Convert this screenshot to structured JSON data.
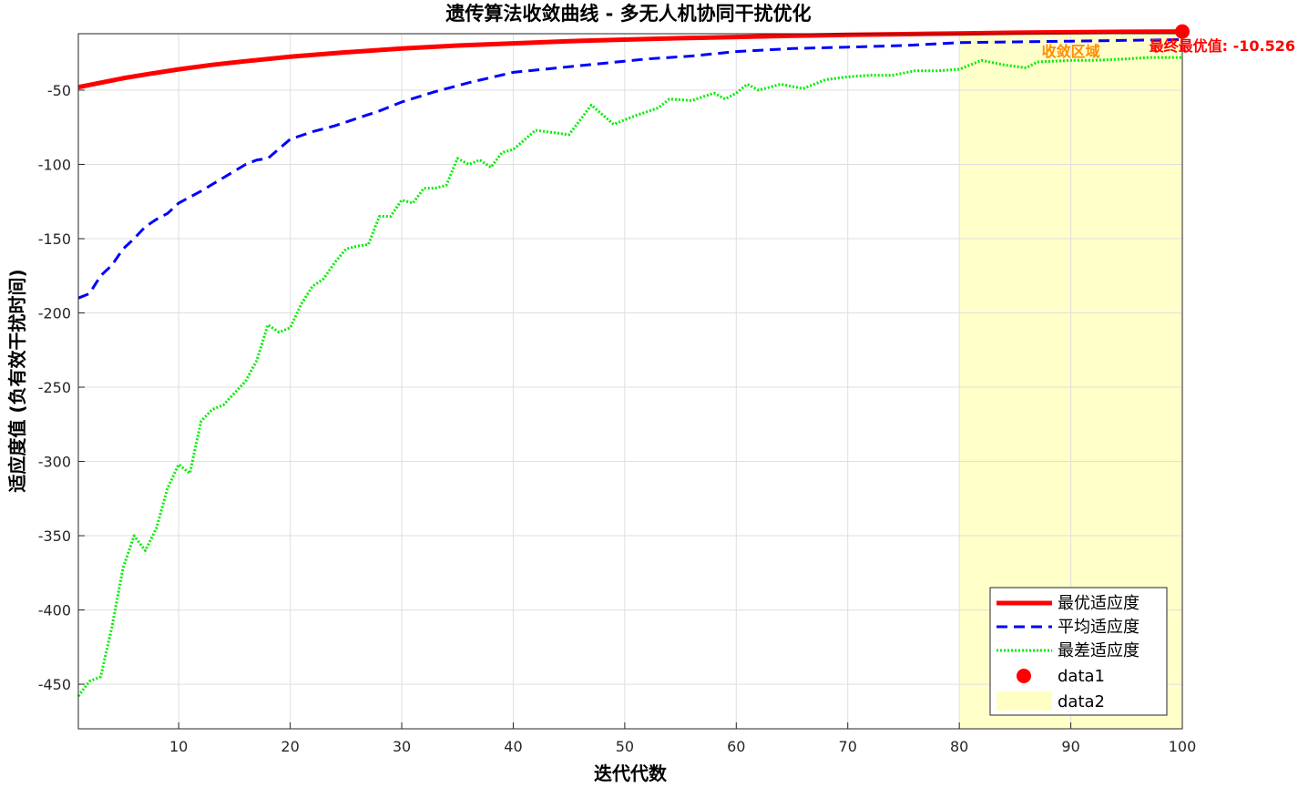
{
  "chart_data": {
    "type": "line",
    "title": "遗传算法收敛曲线 - 多无人机协同干扰优化",
    "xlabel": "迭代代数",
    "ylabel": "适应度值 (负有效干扰时间)",
    "xlim": [
      1,
      100
    ],
    "ylim": [
      -480,
      -12
    ],
    "xticks": [
      10,
      20,
      30,
      40,
      50,
      60,
      70,
      80,
      90,
      100
    ],
    "yticks": [
      -450,
      -400,
      -350,
      -300,
      -250,
      -200,
      -150,
      -100,
      -50
    ],
    "grid": true,
    "legend_position": "bottom-right",
    "series": [
      {
        "name": "最优适应度",
        "color": "#ff0000",
        "style": "solid",
        "x": [
          1,
          3,
          5,
          7,
          10,
          13,
          16,
          20,
          25,
          30,
          35,
          40,
          45,
          50,
          55,
          60,
          65,
          70,
          75,
          80,
          85,
          90,
          95,
          100
        ],
        "values": [
          -48,
          -45,
          -42,
          -39.5,
          -36,
          -33,
          -30.5,
          -27.5,
          -24.5,
          -22,
          -20,
          -18.5,
          -17,
          -16,
          -15,
          -14.2,
          -13.4,
          -12.8,
          -12.3,
          -11.8,
          -11.3,
          -11,
          -10.7,
          -10.526
        ]
      },
      {
        "name": "平均适应度",
        "color": "#0000ff",
        "style": "dashed",
        "x": [
          1,
          2,
          3,
          4,
          5,
          6,
          7,
          8,
          9,
          10,
          12,
          14,
          16,
          17,
          18,
          20,
          22,
          24,
          26,
          28,
          30,
          33,
          36,
          40,
          44,
          48,
          52,
          56,
          60,
          65,
          70,
          75,
          80,
          85,
          90,
          95,
          100
        ],
        "values": [
          -190,
          -187,
          -175,
          -168,
          -157,
          -150,
          -142,
          -137,
          -133,
          -126,
          -118,
          -109,
          -100,
          -97,
          -96,
          -83,
          -78,
          -74,
          -69,
          -64,
          -58,
          -51,
          -45,
          -38,
          -35,
          -32,
          -29,
          -27,
          -24,
          -22,
          -21,
          -20,
          -18,
          -17.5,
          -17,
          -16.5,
          -16
        ]
      },
      {
        "name": "最差适应度",
        "color": "#00ee00",
        "style": "dotted",
        "x": [
          1,
          2,
          3,
          4,
          5,
          6,
          7,
          8,
          9,
          10,
          11,
          12,
          13,
          14,
          15,
          16,
          17,
          18,
          19,
          20,
          21,
          22,
          23,
          24,
          25,
          26,
          27,
          28,
          29,
          30,
          31,
          32,
          33,
          34,
          35,
          36,
          37,
          38,
          39,
          40,
          42,
          44,
          45,
          47,
          49,
          51,
          53,
          54,
          56,
          58,
          59,
          60,
          61,
          62,
          64,
          66,
          68,
          70,
          72,
          74,
          76,
          78,
          80,
          82,
          84,
          86,
          87,
          90,
          92,
          95,
          97,
          100
        ],
        "values": [
          -458,
          -448,
          -445,
          -412,
          -372,
          -350,
          -360,
          -345,
          -318,
          -302,
          -308,
          -273,
          -265,
          -262,
          -254,
          -246,
          -232,
          -208,
          -213,
          -210,
          -194,
          -182,
          -177,
          -166,
          -157,
          -155,
          -154,
          -135,
          -135,
          -124,
          -126,
          -116,
          -116,
          -114,
          -96,
          -100,
          -97,
          -102,
          -92,
          -90,
          -77,
          -79,
          -80,
          -60,
          -73,
          -67,
          -62,
          -56,
          -57,
          -52,
          -56,
          -52,
          -46,
          -50,
          -46,
          -49,
          -43,
          -41,
          -40,
          -40,
          -37,
          -37,
          -36,
          -30,
          -33,
          -35,
          -31,
          -30,
          -30,
          -29,
          -28,
          -28
        ]
      }
    ],
    "marker": {
      "name": "data1",
      "x": 100,
      "y": -10.526,
      "color": "#ff0000"
    },
    "region": {
      "name": "data2",
      "x": [
        80,
        100
      ],
      "color": "#ffffc4",
      "label": "收敛区域",
      "label_color": "#ff8c00"
    },
    "annotation": {
      "text": "最终最优值: -10.526",
      "color": "#ff0000"
    }
  }
}
